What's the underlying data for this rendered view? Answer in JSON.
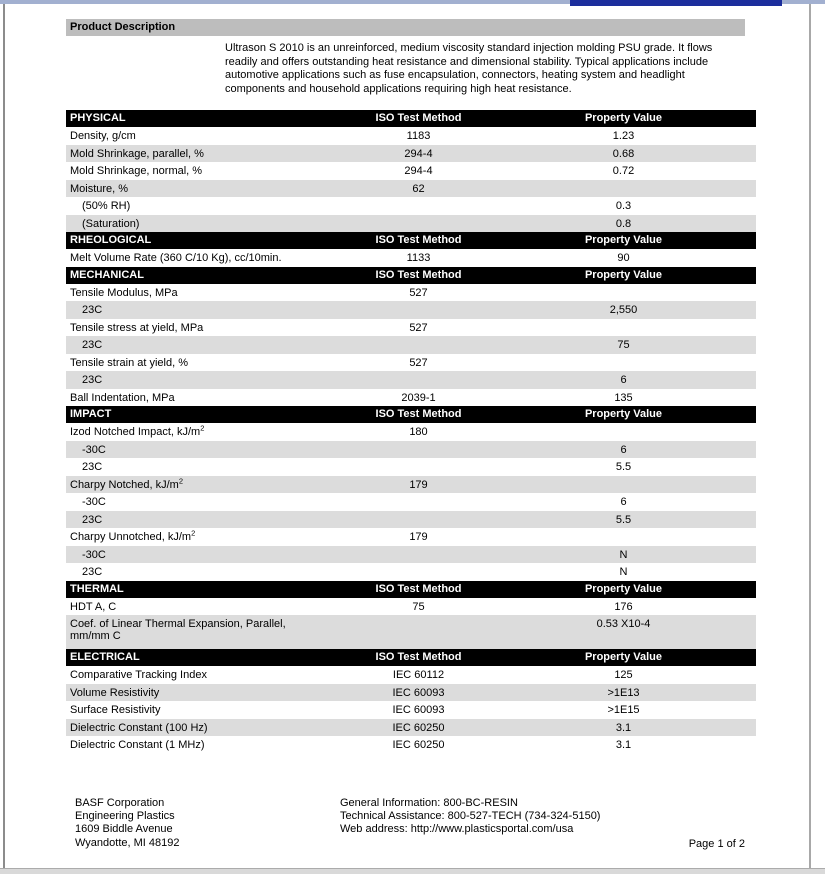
{
  "colors": {
    "section_header_bg": "#000000",
    "section_header_text": "#ffffff",
    "shaded_row": "#dcdcdc",
    "description_bar": "#bdbdbd",
    "top_strip": "#a2b0d0",
    "title_bar_fragment": "#1c2e9c"
  },
  "product_description": {
    "title": "Product Description",
    "body": "Ultrason S 2010 is an unreinforced, medium viscosity standard injection molding PSU grade. It flows readily and offers outstanding heat resistance and dimensional stability. Typical applications include automotive applications such as fuse encapsulation, connectors, heating system and headlight components and household applications requiring high heat resistance."
  },
  "table": {
    "method_col_label": "ISO Test Method",
    "value_col_label": "Property Value",
    "sections": [
      {
        "name": "PHYSICAL",
        "rows": [
          {
            "property": "Density, g/cm",
            "method": "1183",
            "value": "1.23",
            "shaded": false,
            "indent": false
          },
          {
            "property": "Mold Shrinkage, parallel, %",
            "method": "294-4",
            "value": "0.68",
            "shaded": true,
            "indent": false
          },
          {
            "property": "Mold Shrinkage, normal, %",
            "method": "294-4",
            "value": "0.72",
            "shaded": false,
            "indent": false
          },
          {
            "property": "Moisture, %",
            "method": "62",
            "value": "",
            "shaded": true,
            "indent": false
          },
          {
            "property": "(50% RH)",
            "method": "",
            "value": "0.3",
            "shaded": false,
            "indent": true
          },
          {
            "property": "(Saturation)",
            "method": "",
            "value": "0.8",
            "shaded": true,
            "indent": true
          }
        ]
      },
      {
        "name": "RHEOLOGICAL",
        "rows": [
          {
            "property": "Melt Volume Rate (360 C/10 Kg), cc/10min.",
            "method": "1133",
            "value": "90",
            "shaded": false,
            "indent": false
          }
        ]
      },
      {
        "name": "MECHANICAL",
        "rows": [
          {
            "property": "Tensile Modulus, MPa",
            "method": "527",
            "value": "",
            "shaded": false,
            "indent": false
          },
          {
            "property": "23C",
            "method": "",
            "value": "2,550",
            "shaded": true,
            "indent": true
          },
          {
            "property": "Tensile stress at yield, MPa",
            "method": "527",
            "value": "",
            "shaded": false,
            "indent": false
          },
          {
            "property": "23C",
            "method": "",
            "value": "75",
            "shaded": true,
            "indent": true
          },
          {
            "property": "Tensile strain at yield, %",
            "method": "527",
            "value": "",
            "shaded": false,
            "indent": false
          },
          {
            "property": "23C",
            "method": "",
            "value": "6",
            "shaded": true,
            "indent": true
          },
          {
            "property": "Ball Indentation, MPa",
            "method": "2039-1",
            "value": "135",
            "shaded": false,
            "indent": false
          }
        ]
      },
      {
        "name": "IMPACT",
        "rows": [
          {
            "property": "Izod Notched Impact, kJ/m",
            "sup": "2",
            "method": "180",
            "value": "",
            "shaded": false,
            "indent": false
          },
          {
            "property": "-30C",
            "method": "",
            "value": "6",
            "shaded": true,
            "indent": true
          },
          {
            "property": "23C",
            "method": "",
            "value": "5.5",
            "shaded": false,
            "indent": true
          },
          {
            "property": "Charpy Notched, kJ/m",
            "sup": "2",
            "method": "179",
            "value": "",
            "shaded": true,
            "indent": false
          },
          {
            "property": "-30C",
            "method": "",
            "value": "6",
            "shaded": false,
            "indent": true
          },
          {
            "property": "23C",
            "method": "",
            "value": "5.5",
            "shaded": true,
            "indent": true
          },
          {
            "property": "Charpy Unnotched, kJ/m",
            "sup": "2",
            "method": "179",
            "value": "",
            "shaded": false,
            "indent": false
          },
          {
            "property": "-30C",
            "method": "",
            "value": "N",
            "shaded": true,
            "indent": true
          },
          {
            "property": "23C",
            "method": "",
            "value": "N",
            "shaded": false,
            "indent": true
          }
        ]
      },
      {
        "name": "THERMAL",
        "rows": [
          {
            "property": "HDT A,  C",
            "method": "75",
            "value": "176",
            "shaded": false,
            "indent": false
          },
          {
            "property": "Coef. of Linear Thermal Expansion, Parallel,",
            "line2": "mm/mm C",
            "method": "",
            "value": "0.53 X10-4",
            "shaded": true,
            "indent": false
          }
        ]
      },
      {
        "name": "ELECTRICAL",
        "rows": [
          {
            "property": "Comparative Tracking Index",
            "method": "IEC 60112",
            "value": "125",
            "shaded": false,
            "indent": false
          },
          {
            "property": "Volume Resistivity",
            "method": "IEC 60093",
            "value": ">1E13",
            "shaded": true,
            "indent": false
          },
          {
            "property": "Surface Resistivity",
            "method": "IEC 60093",
            "value": ">1E15",
            "shaded": false,
            "indent": false
          },
          {
            "property": "Dielectric Constant (100 Hz)",
            "method": "IEC 60250",
            "value": "3.1",
            "shaded": true,
            "indent": false
          },
          {
            "property": "Dielectric Constant (1 MHz)",
            "method": "IEC 60250",
            "value": "3.1",
            "shaded": false,
            "indent": false
          }
        ]
      }
    ]
  },
  "footer": {
    "address_lines": [
      "BASF Corporation",
      "Engineering Plastics",
      "1609 Biddle Avenue",
      "Wyandotte, MI 48192"
    ],
    "contact_lines": [
      "General Information: 800-BC-RESIN",
      "Technical Assistance: 800-527-TECH (734-324-5150)",
      "Web address: http://www.plasticsportal.com/usa"
    ],
    "page_indicator": "Page 1 of 2"
  }
}
